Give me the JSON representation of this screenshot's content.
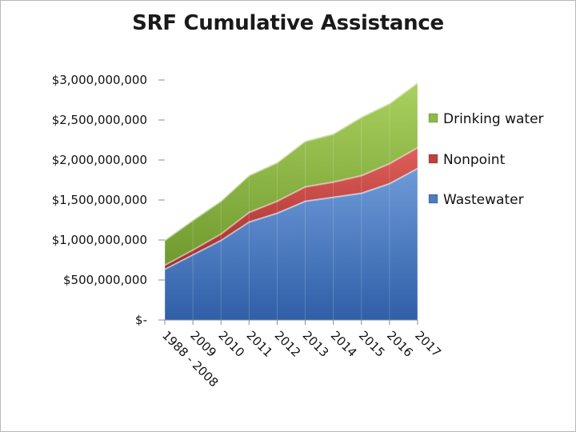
{
  "chart_data": {
    "type": "area",
    "stacked": true,
    "title": "SRF Cumulative Assistance",
    "xlabel": "",
    "ylabel": "",
    "categories": [
      "1988 - 2008",
      "2009",
      "2010",
      "2011",
      "2012",
      "2013",
      "2014",
      "2015",
      "2016",
      "2017"
    ],
    "ylim": [
      0,
      3000000000
    ],
    "y_ticks": [
      {
        "value": 0,
        "label": "$-"
      },
      {
        "value": 500000000,
        "label": "$500,000,000"
      },
      {
        "value": 1000000000,
        "label": "$1,000,000,000"
      },
      {
        "value": 1500000000,
        "label": "$1,500,000,000"
      },
      {
        "value": 2000000000,
        "label": "$2,000,000,000"
      },
      {
        "value": 2500000000,
        "label": "$2,500,000,000"
      },
      {
        "value": 3000000000,
        "label": "$3,000,000,000"
      }
    ],
    "series": [
      {
        "name": "Wastewater",
        "color": "#4a7bc4",
        "values": [
          640000000,
          820000000,
          1000000000,
          1230000000,
          1340000000,
          1490000000,
          1540000000,
          1590000000,
          1710000000,
          1900000000
        ]
      },
      {
        "name": "Nonpoint",
        "color": "#c0403c",
        "values": [
          50000000,
          60000000,
          80000000,
          120000000,
          150000000,
          180000000,
          190000000,
          220000000,
          250000000,
          260000000
        ]
      },
      {
        "name": "Drinking water",
        "color": "#8dbb43",
        "values": [
          310000000,
          370000000,
          410000000,
          460000000,
          480000000,
          570000000,
          600000000,
          730000000,
          750000000,
          810000000
        ]
      }
    ],
    "legend": {
      "position": "right",
      "order": [
        "Drinking water",
        "Nonpoint",
        "Wastewater"
      ]
    },
    "grid": false
  }
}
